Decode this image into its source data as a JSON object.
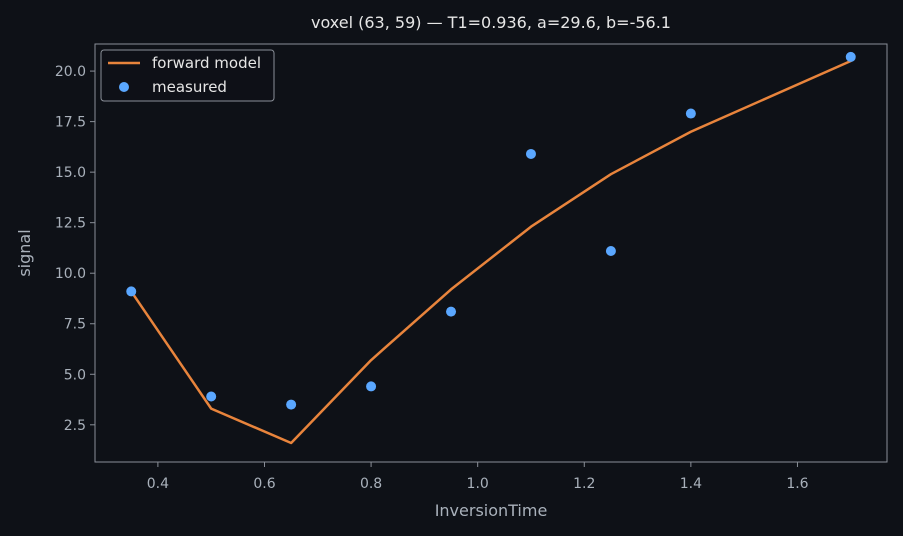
{
  "chart_data": {
    "type": "line",
    "title": "voxel (63, 59) — T1=0.936, a=29.6, b=-56.1",
    "xlabel": "InversionTime",
    "ylabel": "signal",
    "xlim": [
      0.282,
      1.768
    ],
    "ylim": [
      0.66,
      21.34
    ],
    "xticks": [
      0.4,
      0.6,
      0.8,
      1.0,
      1.2,
      1.4,
      1.6
    ],
    "xtick_labels": [
      "0.4",
      "0.6",
      "0.8",
      "1.0",
      "1.2",
      "1.4",
      "1.6"
    ],
    "yticks": [
      2.5,
      5.0,
      7.5,
      10.0,
      12.5,
      15.0,
      17.5,
      20.0
    ],
    "ytick_labels": [
      "2.5",
      "5.0",
      "7.5",
      "10.0",
      "12.5",
      "15.0",
      "17.5",
      "20.0"
    ],
    "grid": false,
    "legend_position": "top-left",
    "series": [
      {
        "name": "forward model",
        "kind": "line",
        "color": "#e8843c",
        "x": [
          0.35,
          0.5,
          0.65,
          0.8,
          0.95,
          1.1,
          1.25,
          1.4,
          1.7
        ],
        "y": [
          9.1,
          3.3,
          1.6,
          5.7,
          9.2,
          12.3,
          14.9,
          17.0,
          20.5
        ]
      },
      {
        "name": "measured",
        "kind": "scatter",
        "color": "#5aa7ff",
        "x": [
          0.35,
          0.5,
          0.65,
          0.8,
          0.95,
          1.1,
          1.25,
          1.4,
          1.7
        ],
        "y": [
          9.1,
          3.9,
          3.5,
          4.4,
          8.1,
          15.9,
          11.1,
          17.9,
          20.7
        ]
      }
    ]
  }
}
